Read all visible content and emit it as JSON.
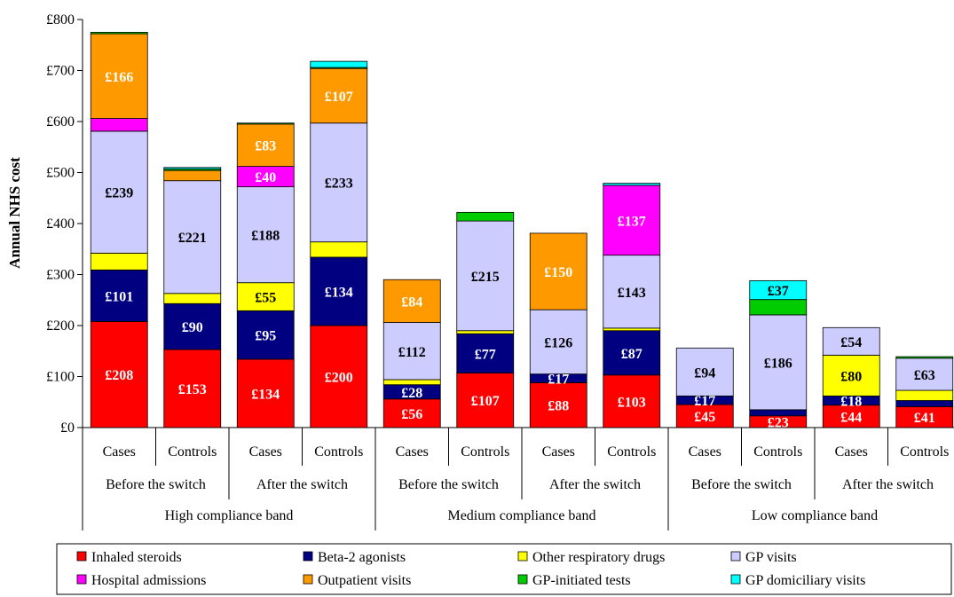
{
  "chart_data": {
    "type": "bar",
    "stacked": true,
    "title": "",
    "ylabel": "Annual NHS cost",
    "xlabel": "",
    "ylim": [
      0,
      800
    ],
    "y_ticks": [
      "£0",
      "£100",
      "£200",
      "£300",
      "£400",
      "£500",
      "£600",
      "£700",
      "£800"
    ],
    "grid": false,
    "legend_position": "bottom",
    "categories": [
      "Cases",
      "Controls",
      "Cases",
      "Controls",
      "Cases",
      "Controls",
      "Cases",
      "Controls",
      "Cases",
      "Controls",
      "Cases",
      "Controls"
    ],
    "period_labels": [
      "Before the switch",
      "After the switch",
      "Before the switch",
      "After the switch",
      "Before the switch",
      "After the switch"
    ],
    "band_labels": [
      "High compliance band",
      "Medium compliance band",
      "Low compliance band"
    ],
    "series": [
      {
        "name": "Inhaled steroids",
        "color": "#ff0000",
        "text_color": "#ffffff",
        "values": [
          208,
          153,
          134,
          200,
          56,
          107,
          88,
          103,
          45,
          23,
          44,
          41
        ],
        "labels": [
          "£208",
          "£153",
          "£134",
          "£200",
          "£56",
          "£107",
          "£88",
          "£103",
          "£45",
          "£23",
          "£44",
          "£41"
        ]
      },
      {
        "name": "Beta-2 agonists",
        "color": "#000080",
        "text_color": "#ffffff",
        "values": [
          101,
          90,
          95,
          134,
          28,
          77,
          17,
          87,
          17,
          12,
          18,
          12
        ],
        "labels": [
          "£101",
          "£90",
          "£95",
          "£134",
          "£28",
          "£77",
          "£17",
          "£87",
          "£17",
          "",
          "£18",
          ""
        ]
      },
      {
        "name": "Other respiratory drugs",
        "color": "#ffff00",
        "text_color": "#000000",
        "values": [
          33,
          20,
          55,
          30,
          10,
          6,
          0,
          5,
          0,
          0,
          80,
          20
        ],
        "labels": [
          "",
          "",
          "£55",
          "",
          "",
          "",
          "",
          "",
          "",
          "",
          "£80",
          ""
        ]
      },
      {
        "name": "GP visits",
        "color": "#ccccff",
        "text_color": "#000000",
        "values": [
          239,
          221,
          188,
          233,
          112,
          215,
          126,
          143,
          94,
          186,
          54,
          63
        ],
        "labels": [
          "£239",
          "£221",
          "£188",
          "£233",
          "£112",
          "£215",
          "£126",
          "£143",
          "£94",
          "£186",
          "£54",
          "£63"
        ]
      },
      {
        "name": "Hospital admissions",
        "color": "#ff00ff",
        "text_color": "#ffffff",
        "values": [
          25,
          0,
          40,
          0,
          0,
          0,
          0,
          137,
          0,
          0,
          0,
          0
        ],
        "labels": [
          "",
          "",
          "£40",
          "",
          "",
          "",
          "",
          "£137",
          "",
          "",
          "",
          ""
        ]
      },
      {
        "name": "Outpatient visits",
        "color": "#ff9900",
        "text_color": "#ffffff",
        "values": [
          166,
          20,
          83,
          107,
          84,
          0,
          150,
          0,
          0,
          0,
          0,
          0
        ],
        "labels": [
          "£166",
          "",
          "£83",
          "£107",
          "£84",
          "",
          "£150",
          "",
          "",
          "",
          "",
          ""
        ]
      },
      {
        "name": "GP-initiated tests",
        "color": "#00cc00",
        "text_color": "#000000",
        "values": [
          3,
          3,
          2,
          2,
          0,
          17,
          0,
          0,
          0,
          30,
          0,
          3
        ],
        "labels": [
          "",
          "",
          "",
          "",
          "",
          "",
          "",
          "",
          "",
          "",
          "",
          ""
        ]
      },
      {
        "name": "GP domiciliary visits",
        "color": "#00ffff",
        "text_color": "#000000",
        "values": [
          0,
          3,
          0,
          12,
          0,
          0,
          0,
          4,
          0,
          37,
          0,
          0
        ],
        "labels": [
          "",
          "",
          "",
          "",
          "",
          "",
          "",
          "",
          "",
          "£37",
          "",
          ""
        ]
      }
    ]
  }
}
